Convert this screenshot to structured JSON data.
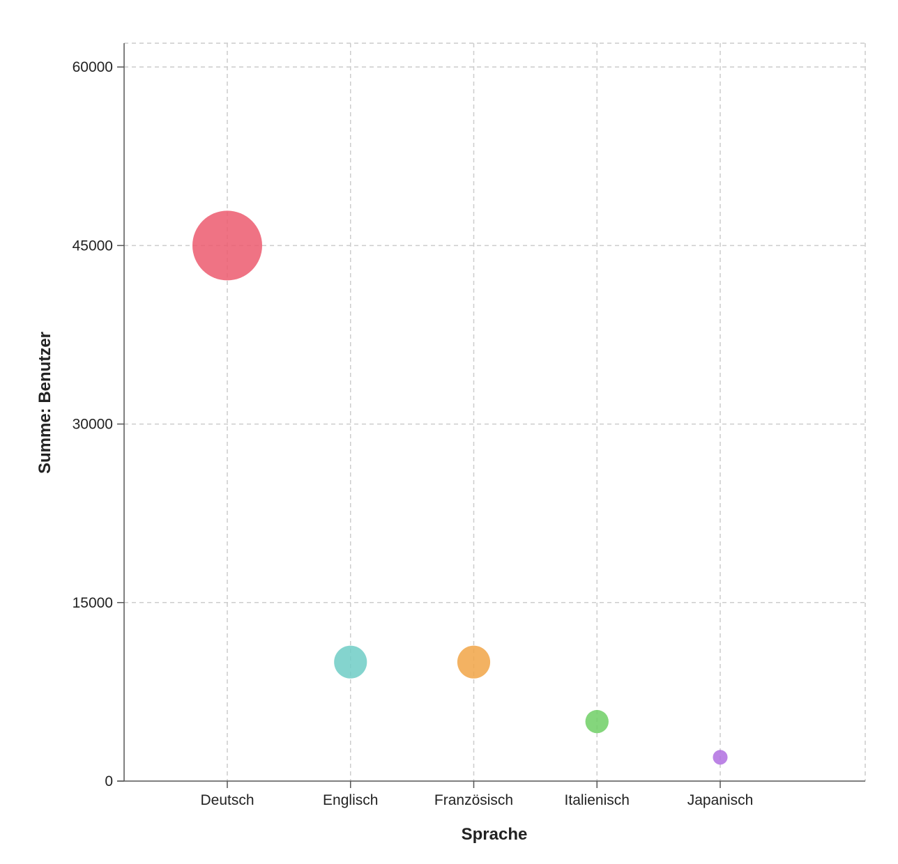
{
  "chart_data": {
    "type": "scatter",
    "title": "",
    "xlabel": "Sprache",
    "ylabel": "Summe: Benutzer",
    "categories": [
      "Deutsch",
      "Englisch",
      "Französisch",
      "Italienisch",
      "Japanisch"
    ],
    "values": [
      45000,
      10000,
      10000,
      5000,
      2000
    ],
    "colors": [
      "#ec5a6e",
      "#6fcdc6",
      "#f1a447",
      "#6fcf65",
      "#b06fe0"
    ],
    "ylim": [
      0,
      62000
    ],
    "yticks": [
      0,
      15000,
      30000,
      45000,
      60000
    ],
    "yticklabels": [
      "0",
      "15000",
      "30000",
      "45000",
      "60000"
    ],
    "grid": true,
    "size_encoding": "value"
  }
}
